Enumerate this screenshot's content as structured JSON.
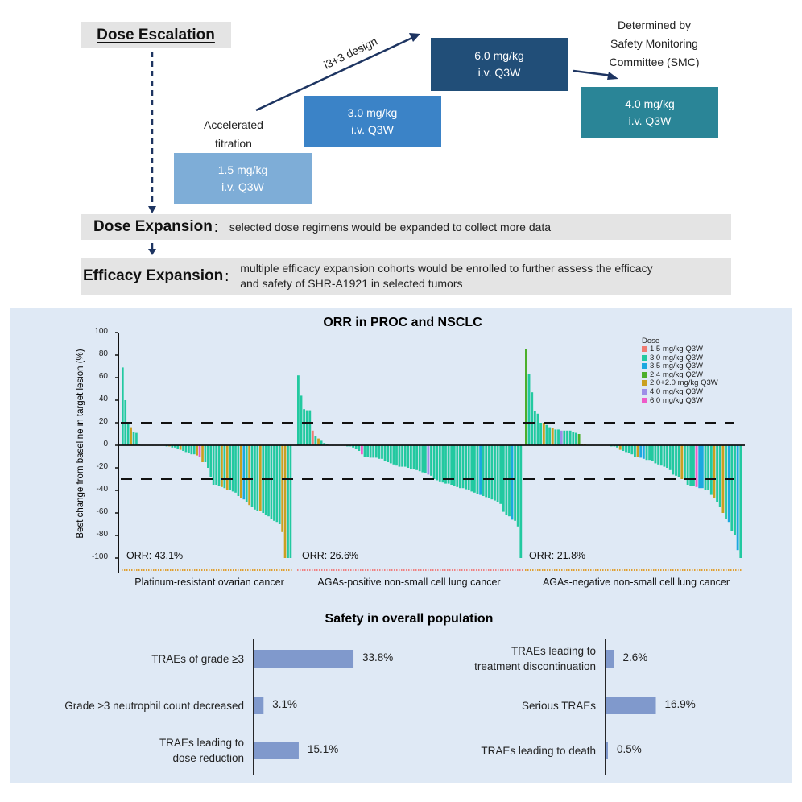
{
  "design": {
    "dose_escalation": "Dose Escalation",
    "accelerated_titration": [
      "Accelerated",
      "titration"
    ],
    "i33_design": "i3+3 design",
    "smc_note": [
      "Determined  by",
      "Safety Monitoring",
      "Committee (SMC)"
    ],
    "doses": [
      {
        "dose": "1.5 mg/kg",
        "regimen": "i.v.  Q3W",
        "color": "#7eadd7"
      },
      {
        "dose": "3.0 mg/kg",
        "regimen": "i.v.  Q3W",
        "color": "#3b83c7"
      },
      {
        "dose": "6.0 mg/kg",
        "regimen": "i.v.  Q3W",
        "color": "#214e78"
      },
      {
        "dose": "4.0 mg/kg",
        "regimen": "i.v.  Q3W",
        "color": "#2a8597"
      }
    ],
    "dose_expansion": {
      "label": "Dose Expansion",
      "colon": ":",
      "text": "selected dose regimens would be expanded to collect more data"
    },
    "efficacy_expansion": {
      "label": "Efficacy Expansion",
      "colon": ":",
      "text_line1": "multiple efficacy expansion cohorts would be enrolled to further assess the efficacy",
      "text_line2": "and safety of SHR-A1921 in selected tumors"
    }
  },
  "chart_data": [
    {
      "type": "bar",
      "title": "ORR in PROC and NSCLC",
      "ylabel": "Best change from baseline in target lesion (%)",
      "ylim": [
        -100,
        100
      ],
      "yticks": [
        "100",
        "80",
        "60",
        "40",
        "20",
        "0",
        "-20",
        "-40",
        "-60",
        "-80",
        "-100"
      ],
      "reference_lines": [
        20,
        -30
      ],
      "legend": {
        "title": "Dose",
        "placement": "top-right",
        "items": [
          {
            "label": "1.5 mg/kg Q3W",
            "color": "#f07b72"
          },
          {
            "label": "3.0 mg/kg Q3W",
            "color": "#22c9a0"
          },
          {
            "label": "3.5 mg/kg Q3W",
            "color": "#1ba8e0"
          },
          {
            "label": "2.4 mg/kg Q2W",
            "color": "#4caf2b"
          },
          {
            "label": "2.0+2.0 mg/kg Q3W",
            "color": "#c9a020"
          },
          {
            "label": "4.0 mg/kg Q3W",
            "color": "#9d8ee8"
          },
          {
            "label": "6.0 mg/kg Q3W",
            "color": "#ee5bc8"
          }
        ]
      },
      "groups": [
        {
          "name": "Platinum-resistant ovarian cancer",
          "orr": "ORR: 43.1%",
          "underline_color": "#e0a030",
          "values": [
            69,
            40,
            20,
            16,
            12,
            11,
            1,
            0,
            0,
            0,
            0,
            0,
            0,
            0,
            0,
            0,
            -1,
            -1,
            -2,
            -2,
            -3,
            -4,
            -5,
            -6,
            -7,
            -8,
            -8,
            -9,
            -10,
            -15,
            -15,
            -20,
            -28,
            -35,
            -35,
            -36,
            -37,
            -38,
            -40,
            -40,
            -41,
            -42,
            -45,
            -47,
            -48,
            -50,
            -53,
            -55,
            -57,
            -58,
            -58,
            -60,
            -62,
            -63,
            -65,
            -67,
            -68,
            -70,
            -77,
            -100,
            -100,
            -100
          ],
          "dose_index": [
            1,
            1,
            1,
            4,
            1,
            1,
            1,
            1,
            1,
            1,
            1,
            1,
            1,
            1,
            1,
            1,
            1,
            4,
            1,
            1,
            1,
            4,
            1,
            1,
            1,
            1,
            1,
            4,
            6,
            4,
            1,
            1,
            1,
            1,
            1,
            1,
            4,
            1,
            4,
            1,
            1,
            1,
            1,
            4,
            2,
            1,
            4,
            1,
            1,
            1,
            4,
            1,
            1,
            1,
            1,
            1,
            1,
            1,
            4,
            4,
            1,
            1
          ]
        },
        {
          "name": "AGAs-positive non-small cell lung cancer",
          "orr": "ORR: 26.6%",
          "underline_color": "#f08080",
          "values": [
            62,
            44,
            32,
            31,
            31,
            13,
            8,
            6,
            4,
            2,
            1,
            0,
            0,
            0,
            0,
            0,
            0,
            -1,
            -1,
            -2,
            -3,
            -5,
            -8,
            -10,
            -10,
            -11,
            -11,
            -11,
            -12,
            -12,
            -14,
            -15,
            -16,
            -17,
            -18,
            -19,
            -19,
            -19,
            -20,
            -21,
            -21,
            -22,
            -23,
            -24,
            -25,
            -26,
            -27,
            -30,
            -31,
            -32,
            -33,
            -34,
            -34,
            -35,
            -36,
            -37,
            -38,
            -38,
            -39,
            -40,
            -41,
            -42,
            -43,
            -44,
            -45,
            -46,
            -47,
            -48,
            -49,
            -50,
            -52,
            -59,
            -62,
            -63,
            -66,
            -67,
            -72,
            -100
          ],
          "dose_index": [
            1,
            1,
            1,
            1,
            1,
            0,
            1,
            4,
            1,
            1,
            1,
            1,
            1,
            1,
            1,
            1,
            1,
            1,
            1,
            1,
            1,
            1,
            6,
            1,
            1,
            1,
            1,
            1,
            1,
            1,
            1,
            1,
            1,
            1,
            1,
            1,
            1,
            1,
            1,
            1,
            1,
            1,
            1,
            1,
            1,
            5,
            1,
            1,
            1,
            1,
            1,
            1,
            1,
            1,
            1,
            1,
            1,
            1,
            1,
            1,
            1,
            1,
            1,
            2,
            1,
            1,
            1,
            1,
            1,
            1,
            1,
            1,
            1,
            1,
            2,
            1,
            1,
            1
          ]
        },
        {
          "name": "AGAs-negative non-small cell lung cancer",
          "orr": "ORR: 21.8%",
          "underline_color": "#e0a030",
          "values": [
            85,
            63,
            47,
            30,
            28,
            20,
            20,
            18,
            16,
            15,
            14,
            14,
            13,
            13,
            13,
            13,
            12,
            11,
            10,
            1,
            1,
            0,
            0,
            0,
            0,
            0,
            0,
            0,
            0,
            -1,
            -1,
            -2,
            -4,
            -5,
            -6,
            -7,
            -8,
            -10,
            -10,
            -11,
            -12,
            -13,
            -13,
            -14,
            -16,
            -17,
            -18,
            -19,
            -20,
            -22,
            -26,
            -27,
            -28,
            -30,
            -30,
            -35,
            -36,
            -36,
            -37,
            -38,
            -38,
            -40,
            -40,
            -44,
            -47,
            -50,
            -55,
            -60,
            -65,
            -68,
            -76,
            -80,
            -93,
            -100
          ],
          "dose_index": [
            3,
            1,
            1,
            1,
            1,
            1,
            4,
            1,
            1,
            4,
            1,
            1,
            5,
            1,
            1,
            1,
            1,
            1,
            3,
            4,
            4,
            1,
            1,
            1,
            1,
            1,
            1,
            1,
            1,
            1,
            1,
            1,
            4,
            1,
            1,
            1,
            1,
            1,
            4,
            2,
            2,
            1,
            1,
            1,
            1,
            1,
            1,
            1,
            1,
            1,
            1,
            1,
            1,
            4,
            1,
            1,
            1,
            1,
            6,
            2,
            2,
            1,
            1,
            1,
            4,
            1,
            1,
            4,
            1,
            2,
            1,
            1,
            2,
            1
          ]
        }
      ]
    },
    {
      "type": "bar",
      "title": "Safety in overall population",
      "orientation": "horizontal",
      "bar_color": "#8099cc",
      "left": [
        {
          "label": [
            "TRAEs of grade ≥3"
          ],
          "value": 33.8,
          "display": "33.8%"
        },
        {
          "label": [
            "Grade ≥3 neutrophil count  decreased"
          ],
          "value": 3.1,
          "display": "3.1%"
        },
        {
          "label": [
            "TRAEs leading to",
            "dose reduction"
          ],
          "value": 15.1,
          "display": "15.1%"
        }
      ],
      "right": [
        {
          "label": [
            "TRAEs leading to",
            "treatment discontinuation"
          ],
          "value": 2.6,
          "display": "2.6%"
        },
        {
          "label": [
            "Serious TRAEs"
          ],
          "value": 16.9,
          "display": "16.9%"
        },
        {
          "label": [
            "TRAEs leading to death"
          ],
          "value": 0.5,
          "display": "0.5%"
        }
      ]
    }
  ]
}
